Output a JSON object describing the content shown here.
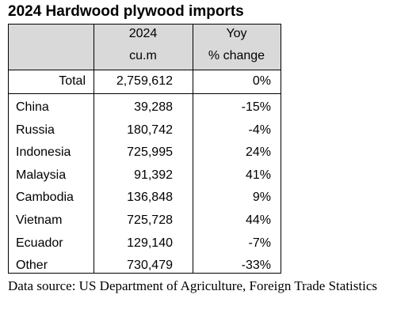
{
  "title": "2024 Hardwood plywood imports",
  "table": {
    "header": [
      [
        "2024",
        "cu.m"
      ],
      [
        "Yoy",
        "% change"
      ]
    ],
    "total": [
      "Total",
      "2,759,612",
      "0%"
    ],
    "rows": [
      [
        "China",
        "39,288",
        "-15%"
      ],
      [
        "Russia",
        "180,742",
        "-4%"
      ],
      [
        "Indonesia",
        "725,995",
        "24%"
      ],
      [
        "Malaysia",
        "91,392",
        "41%"
      ],
      [
        "Cambodia",
        "136,848",
        "9%"
      ],
      [
        "Vietnam",
        "725,728",
        "44%"
      ],
      [
        "Ecuador",
        "129,140",
        "-7%"
      ],
      [
        "Other",
        "730,479",
        "-33%"
      ]
    ]
  },
  "source": "Data source: US Department of Agriculture, Foreign Trade Statistics"
}
